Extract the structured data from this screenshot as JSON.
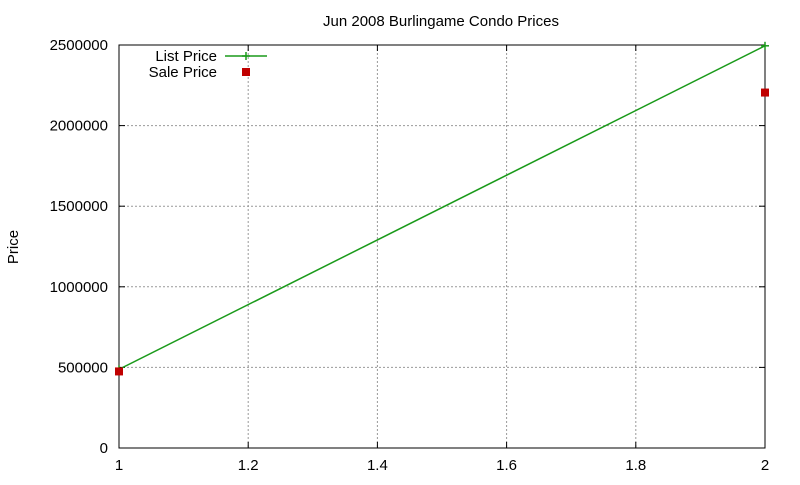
{
  "chart_data": {
    "type": "line",
    "title": "Jun 2008 Burlingame Condo Prices",
    "xlabel": "",
    "ylabel": "Price",
    "xlim": [
      1,
      2
    ],
    "ylim": [
      0,
      2500000
    ],
    "x_ticks": [
      1,
      1.2,
      1.4,
      1.6,
      1.8,
      2
    ],
    "x_tick_labels": [
      "1",
      "1.2",
      "1.4",
      "1.6",
      "1.8",
      "2"
    ],
    "y_ticks": [
      0,
      500000,
      1000000,
      1500000,
      2000000,
      2500000
    ],
    "y_tick_labels": [
      "0",
      "500000",
      "1000000",
      "1500000",
      "2000000",
      "2500000"
    ],
    "grid": true,
    "legend_position": "top-left",
    "series": [
      {
        "name": "List Price",
        "style": "linespoints",
        "marker": "plus",
        "color": "#1a9a1a",
        "x": [
          1,
          2
        ],
        "values": [
          488000,
          2495000
        ]
      },
      {
        "name": "Sale Price",
        "style": "points",
        "marker": "square",
        "color": "#c00000",
        "x": [
          1,
          2
        ],
        "values": [
          475000,
          2205000
        ]
      }
    ]
  }
}
